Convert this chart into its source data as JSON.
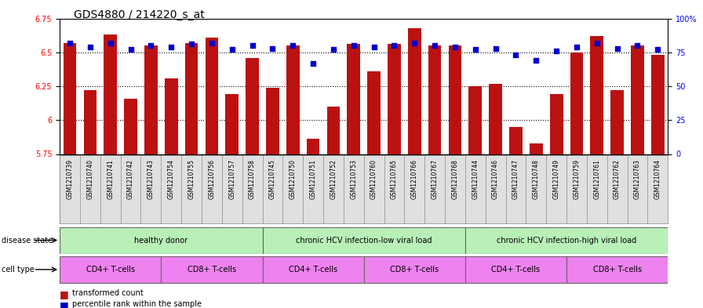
{
  "title": "GDS4880 / 214220_s_at",
  "samples": [
    "GSM1210739",
    "GSM1210740",
    "GSM1210741",
    "GSM1210742",
    "GSM1210743",
    "GSM1210754",
    "GSM1210755",
    "GSM1210756",
    "GSM1210757",
    "GSM1210758",
    "GSM1210745",
    "GSM1210750",
    "GSM1210751",
    "GSM1210752",
    "GSM1210753",
    "GSM1210760",
    "GSM1210765",
    "GSM1210766",
    "GSM1210767",
    "GSM1210768",
    "GSM1210744",
    "GSM1210746",
    "GSM1210747",
    "GSM1210748",
    "GSM1210749",
    "GSM1210759",
    "GSM1210761",
    "GSM1210762",
    "GSM1210763",
    "GSM1210764"
  ],
  "transformed_count": [
    6.57,
    6.22,
    6.63,
    6.16,
    6.55,
    6.31,
    6.57,
    6.61,
    6.19,
    6.46,
    6.24,
    6.55,
    5.86,
    6.1,
    6.56,
    6.36,
    6.56,
    6.68,
    6.55,
    6.55,
    6.25,
    6.27,
    5.95,
    5.83,
    6.19,
    6.5,
    6.62,
    6.22,
    6.55,
    6.48
  ],
  "percentile_rank": [
    82,
    79,
    82,
    77,
    80,
    79,
    81,
    82,
    77,
    80,
    78,
    80,
    67,
    77,
    80,
    79,
    80,
    82,
    80,
    79,
    77,
    78,
    73,
    69,
    76,
    79,
    82,
    78,
    80,
    77
  ],
  "ylim_left": [
    5.75,
    6.75
  ],
  "ylim_right": [
    0,
    100
  ],
  "yticks_left": [
    5.75,
    6.0,
    6.25,
    6.5,
    6.75
  ],
  "ytick_labels_left": [
    "5.75",
    "6",
    "6.25",
    "6.5",
    "6.75"
  ],
  "yticks_right": [
    0,
    25,
    50,
    75,
    100
  ],
  "ytick_labels_right": [
    "0",
    "25",
    "50",
    "75",
    "100%"
  ],
  "ds_groups": [
    {
      "label": "healthy donor",
      "start": 0,
      "end": 9
    },
    {
      "label": "chronic HCV infection-low viral load",
      "start": 10,
      "end": 19
    },
    {
      "label": "chronic HCV infection-high viral load",
      "start": 20,
      "end": 29
    }
  ],
  "ct_groups": [
    {
      "label": "CD4+ T-cells",
      "start": 0,
      "end": 4
    },
    {
      "label": "CD8+ T-cells",
      "start": 5,
      "end": 9
    },
    {
      "label": "CD4+ T-cells",
      "start": 10,
      "end": 14
    },
    {
      "label": "CD8+ T-cells",
      "start": 15,
      "end": 19
    },
    {
      "label": "CD4+ T-cells",
      "start": 20,
      "end": 24
    },
    {
      "label": "CD8+ T-cells",
      "start": 25,
      "end": 29
    }
  ],
  "ds_color": "#b8f0b8",
  "ct_color_cd4": "#ee82ee",
  "ct_color_cd8": "#ee82ee",
  "bar_color": "#BB1111",
  "dot_color": "#0000CC",
  "title_fontsize": 10,
  "tick_fontsize": 7,
  "annotation_fontsize": 7,
  "label_fontsize": 5.5
}
